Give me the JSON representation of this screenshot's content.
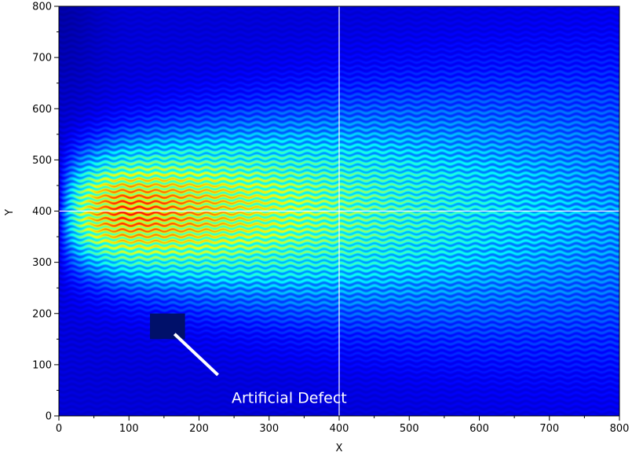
{
  "chart_data": {
    "type": "heatmap",
    "title": "",
    "xlabel": "X",
    "ylabel": "Y",
    "xlim": [
      0,
      800
    ],
    "ylim": [
      0,
      800
    ],
    "x_ticks": [
      0,
      100,
      200,
      300,
      400,
      500,
      600,
      700,
      800
    ],
    "y_ticks": [
      0,
      100,
      200,
      300,
      400,
      500,
      600,
      700,
      800
    ],
    "x_tick_labels": [
      "0",
      "100",
      "200",
      "300",
      "400",
      "500",
      "600",
      "700",
      "800"
    ],
    "y_tick_labels": [
      "0",
      "100",
      "200",
      "300",
      "400",
      "500",
      "600",
      "700",
      "800"
    ],
    "colormap": "jet",
    "colors": {
      "line": "#ffffff",
      "defect": "#00106a",
      "background": "#00107a"
    },
    "field": {
      "peak": [
        110,
        400
      ],
      "stripe_period_y": 11,
      "description_values": "intensity peaks near X≈100, Y≈400 and decays toward X=800"
    },
    "crosshair": {
      "x": 400,
      "y": 400
    },
    "defect": {
      "x_range": [
        130,
        180
      ],
      "y_range": [
        150,
        200
      ]
    },
    "annotations": [
      {
        "text": "Artificial Defect",
        "x": 378,
        "y": 30,
        "arrow_from": [
          227,
          80
        ],
        "arrow_to": [
          165,
          160
        ]
      }
    ]
  }
}
